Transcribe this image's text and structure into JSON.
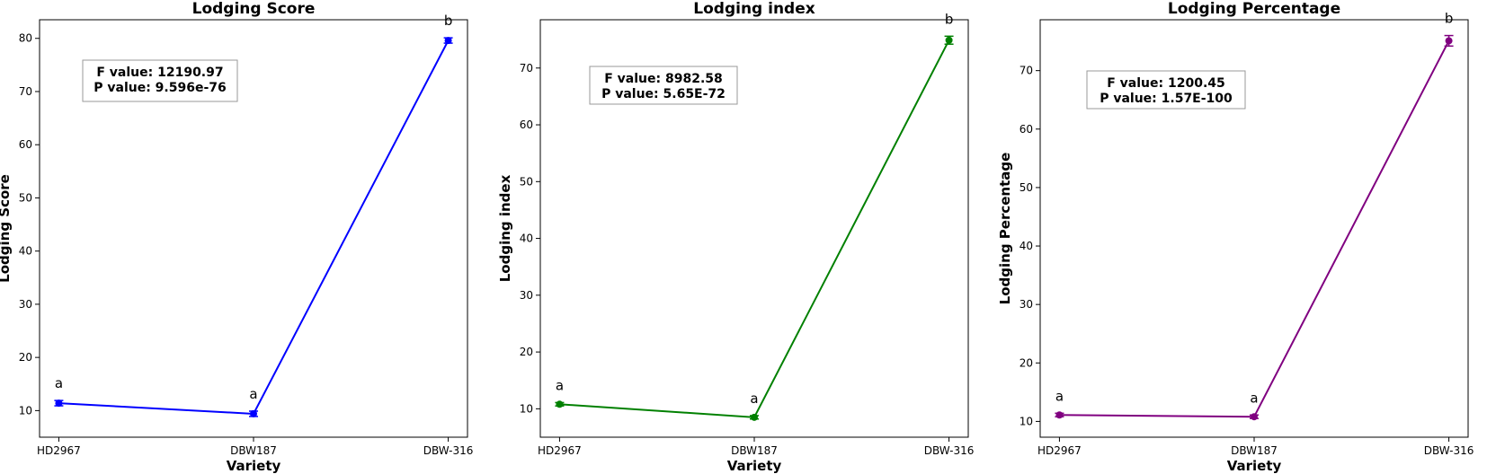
{
  "chart_data": [
    {
      "type": "line",
      "title": "Lodging Score",
      "xlabel": "Variety",
      "ylabel": "Lodging Score",
      "categories": [
        "HD2967",
        "DBW187",
        "DBW-316"
      ],
      "series": [
        {
          "values": [
            11.4,
            9.4,
            79.6
          ],
          "errors": [
            0.5,
            0.5,
            0.5
          ],
          "color": "#0000ff"
        }
      ],
      "group_letters": [
        "a",
        "a",
        "b"
      ],
      "yticks": [
        10,
        20,
        30,
        40,
        50,
        60,
        70,
        80
      ],
      "ylim": [
        5,
        83.5
      ],
      "stats": {
        "f_value": "F value: 12190.97",
        "p_value": "P value: 9.596e-76"
      }
    },
    {
      "type": "line",
      "title": "Lodging index",
      "xlabel": "Variety",
      "ylabel": "Lodging index",
      "categories": [
        "HD2967",
        "DBW187",
        "DBW-316"
      ],
      "series": [
        {
          "values": [
            10.8,
            8.5,
            74.9
          ],
          "errors": [
            0.3,
            0.3,
            0.7
          ],
          "color": "#008000"
        }
      ],
      "group_letters": [
        "a",
        "a",
        "b"
      ],
      "yticks": [
        10,
        20,
        30,
        40,
        50,
        60,
        70
      ],
      "ylim": [
        5,
        78.5
      ],
      "stats": {
        "f_value": "F value: 8982.58",
        "p_value": "P value: 5.65E-72"
      }
    },
    {
      "type": "line",
      "title": "Lodging Percentage",
      "xlabel": "Variety",
      "ylabel": "Lodging Percentage",
      "categories": [
        "HD2967",
        "DBW187",
        "DBW-316"
      ],
      "series": [
        {
          "values": [
            11.1,
            10.8,
            75.1
          ],
          "errors": [
            0.3,
            0.3,
            0.9
          ],
          "color": "#800080"
        }
      ],
      "group_letters": [
        "a",
        "a",
        "b"
      ],
      "yticks": [
        10,
        20,
        30,
        40,
        50,
        60,
        70
      ],
      "ylim": [
        7.3,
        78.7
      ],
      "stats": {
        "f_value": "F value: 1200.45",
        "p_value": "P value: 1.57E-100"
      }
    }
  ]
}
